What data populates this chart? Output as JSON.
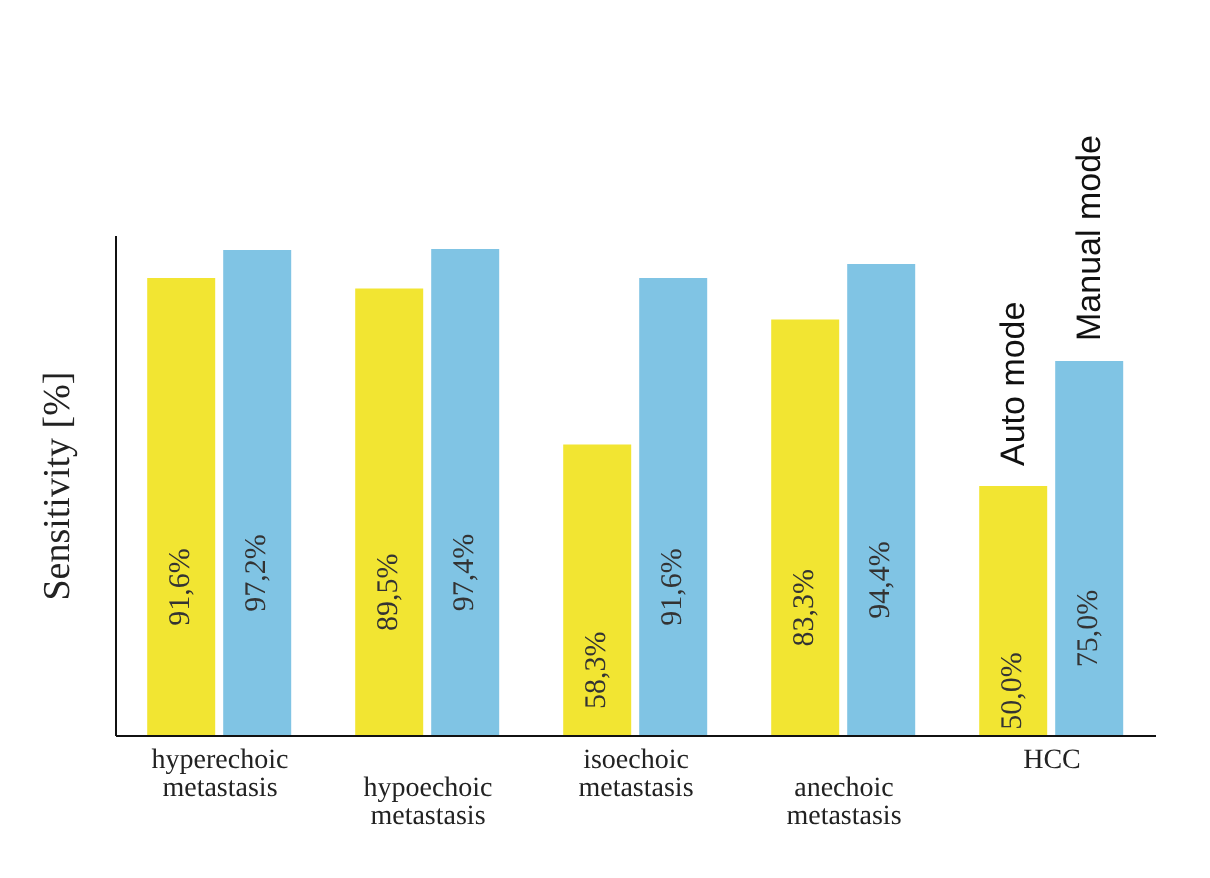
{
  "chart_data": {
    "type": "bar",
    "ylabel": "Sensitivity [%]",
    "categories": [
      "hyperechoic\nmetastasis",
      "hypoechoic\nmetastasis",
      "isoechoic\nmetastasis",
      "anechoic\nmetastasis",
      "HCC"
    ],
    "series": [
      {
        "name": "Auto mode",
        "color": "#f2e532",
        "values": [
          91.6,
          89.5,
          58.3,
          83.3,
          50.0
        ],
        "value_labels": [
          "91,6%",
          "89,5%",
          "58,3%",
          "83,3%",
          "50,0%"
        ]
      },
      {
        "name": "Manual mode",
        "color": "#80c4e4",
        "values": [
          97.2,
          97.4,
          91.6,
          94.4,
          75.0
        ],
        "value_labels": [
          "97,2%",
          "97,4%",
          "91,6%",
          "94,4%",
          "75,0%"
        ]
      }
    ],
    "legend": false,
    "grid": false
  }
}
